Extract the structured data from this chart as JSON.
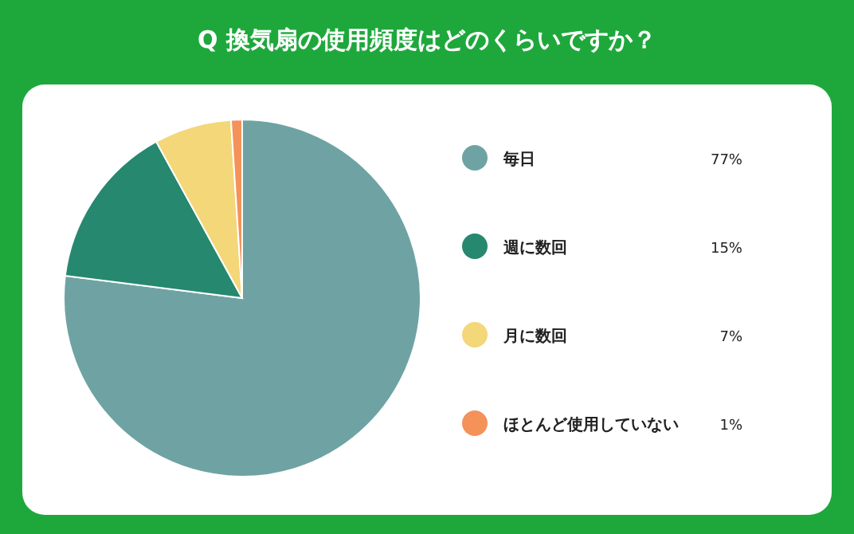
{
  "chart_data": {
    "type": "pie",
    "title": "Q 換気扇の使用頻度はどのくらいですか？",
    "categories": [
      "毎日",
      "週に数回",
      "月に数回",
      "ほとんど使用していない"
    ],
    "values": [
      77,
      15,
      7,
      1
    ],
    "colors": [
      "#6fa3a3",
      "#26886f",
      "#f3d778",
      "#f4925a"
    ],
    "value_labels": [
      "77%",
      "15%",
      "7%",
      "1%"
    ],
    "legend": "right"
  }
}
